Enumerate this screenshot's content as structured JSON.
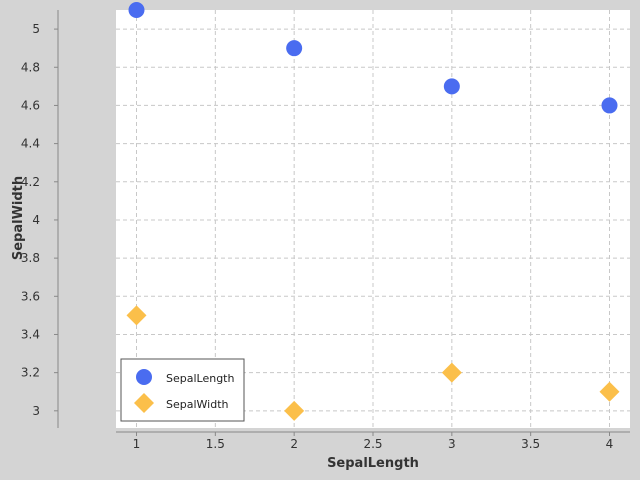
{
  "chart_data": {
    "type": "scatter",
    "title": "",
    "xlabel": "SepalLength",
    "ylabel": "SepalWidth",
    "xlim": [
      0.87,
      4.13
    ],
    "ylim": [
      2.91,
      5.1
    ],
    "x_ticks": [
      "1",
      "1.5",
      "2",
      "2.5",
      "3",
      "3.5",
      "4"
    ],
    "y_ticks": [
      "3",
      "3.2",
      "3.4",
      "3.6",
      "3.8",
      "4",
      "4.2",
      "4.4",
      "4.6",
      "4.8",
      "5"
    ],
    "grid": true,
    "legend_position": "bottom-left",
    "series": [
      {
        "name": "SepalLength",
        "marker": "circle",
        "color": "#4a6cf0",
        "x": [
          1,
          2,
          3,
          4
        ],
        "y": [
          5.1,
          4.9,
          4.7,
          4.6
        ]
      },
      {
        "name": "SepalWidth",
        "marker": "diamond",
        "color": "#fbbf4a",
        "x": [
          1,
          2,
          3,
          4
        ],
        "y": [
          3.5,
          3.0,
          3.2,
          3.1
        ]
      }
    ]
  }
}
